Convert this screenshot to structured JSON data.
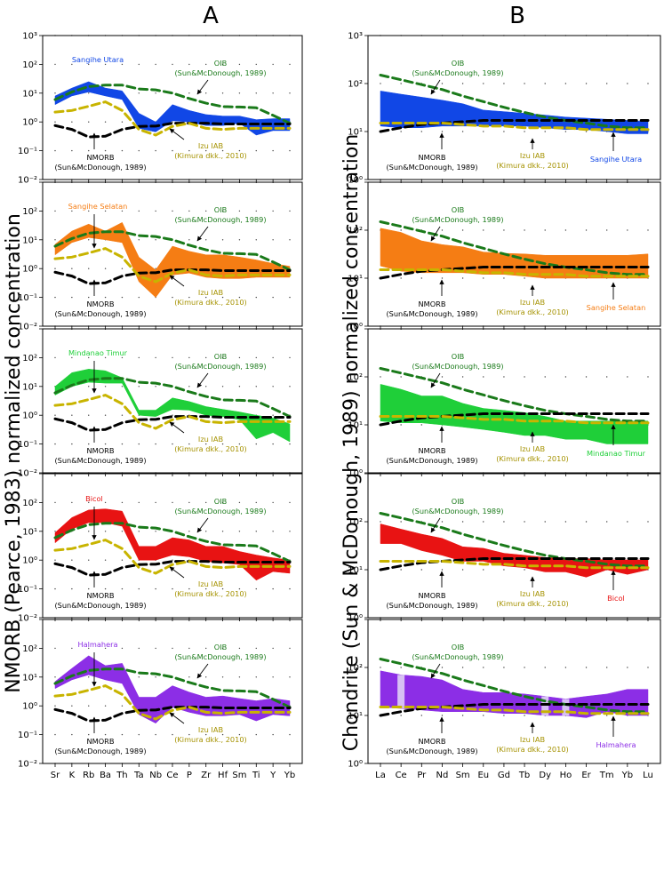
{
  "figure": {
    "panel_a_label": "A",
    "panel_b_label": "B",
    "ylabel_a": "NMORB (Pearce, 1983) normalized concentration",
    "ylabel_b": "Chondrite (Sun & McDonough, 1989) normalized concentration"
  },
  "chart_data": [
    {
      "type": "area",
      "panel": "A",
      "title": "",
      "xlabel": "",
      "ylabel": "NMORB (Pearce, 1983) normalized concentration",
      "y_scale": "log",
      "ylim": [
        0.01,
        1000
      ],
      "grid": "dotted",
      "categories": [
        "Sr",
        "K",
        "Rb",
        "Ba",
        "Th",
        "Ta",
        "Nb",
        "Ce",
        "P",
        "Zr",
        "Hf",
        "Sm",
        "Ti",
        "Y",
        "Yb"
      ],
      "reference_series": [
        {
          "name": "OIB",
          "label": "OIB\n(Sun&McDonough, 1989)",
          "color": "#1a7a1a",
          "style": "dashed",
          "values": [
            6,
            11,
            17,
            19,
            19,
            14,
            13,
            10,
            6.5,
            4.5,
            3.4,
            3.3,
            3.1,
            1.7,
            0.9
          ]
        },
        {
          "name": "NMORB",
          "label": "NMORB\n(Sun&McDonough, 1989)",
          "color": "#000000",
          "style": "dashed",
          "values": [
            0.75,
            0.55,
            0.3,
            0.32,
            0.55,
            0.7,
            0.72,
            0.9,
            0.9,
            0.9,
            0.85,
            0.85,
            0.85,
            0.85,
            0.85
          ]
        },
        {
          "name": "Izu IAB",
          "label": "Izu IAB\n(Kimura dkk., 2010)",
          "color": "#c8b400",
          "style": "dashed",
          "values": [
            2.2,
            2.5,
            3.5,
            5,
            2.5,
            0.55,
            0.35,
            0.7,
            0.9,
            0.6,
            0.55,
            0.6,
            0.6,
            0.6,
            0.6
          ]
        }
      ],
      "subplots": [
        {
          "name": "Sangihe Utara",
          "color": "#1147e6",
          "lower": [
            4,
            8,
            11,
            8,
            6,
            0.6,
            0.45,
            1.1,
            1.0,
            0.75,
            0.75,
            0.9,
            0.35,
            0.5,
            0.5
          ],
          "upper": [
            8,
            15,
            25,
            15,
            12,
            2,
            1,
            4,
            2.5,
            1.8,
            1.6,
            1.6,
            1.2,
            1.3,
            1.3
          ]
        },
        {
          "name": "Sangihe Selatan",
          "color": "#f57d14",
          "lower": [
            3,
            8,
            12,
            10,
            8,
            0.35,
            0.1,
            0.6,
            0.7,
            0.5,
            0.45,
            0.45,
            0.5,
            0.5,
            0.5
          ],
          "upper": [
            7,
            20,
            35,
            20,
            40,
            2.5,
            0.9,
            6,
            4,
            3,
            3,
            2.5,
            2,
            1.5,
            1.2
          ]
        },
        {
          "name": "Mindanao Timur",
          "color": "#1fcf39",
          "lower": [
            5,
            10,
            14,
            13,
            13,
            1,
            0.9,
            1.6,
            1.5,
            1,
            0.9,
            0.7,
            0.15,
            0.25,
            0.12
          ],
          "upper": [
            10,
            30,
            40,
            35,
            20,
            1.5,
            1.5,
            4,
            3,
            2,
            1.6,
            1.3,
            1,
            0.8,
            0.5
          ]
        },
        {
          "name": "Bicol",
          "color": "#e81313",
          "lower": [
            4,
            12,
            20,
            20,
            15,
            1,
            1,
            1.5,
            1.3,
            0.9,
            0.8,
            0.7,
            0.2,
            0.4,
            0.35
          ],
          "upper": [
            9,
            30,
            55,
            60,
            50,
            3,
            3,
            6,
            5,
            3,
            3,
            2,
            1.5,
            1.2,
            1
          ]
        },
        {
          "name": "Halmahera",
          "color": "#8c2ee6",
          "lower": [
            4,
            8,
            12,
            8,
            6,
            0.5,
            0.25,
            0.9,
            0.6,
            0.45,
            0.45,
            0.5,
            0.3,
            0.5,
            0.45
          ],
          "upper": [
            7,
            20,
            55,
            25,
            30,
            2,
            2,
            5,
            3,
            2,
            2.2,
            1.8,
            1.5,
            1.8,
            1.5
          ]
        }
      ]
    },
    {
      "type": "area",
      "panel": "B",
      "title": "",
      "xlabel": "",
      "ylabel": "Chondrite (Sun & McDonough, 1989) normalized concentration",
      "y_scale": "log",
      "ylim": [
        1,
        1000
      ],
      "grid": "dotted",
      "categories": [
        "La",
        "Ce",
        "Pr",
        "Nd",
        "Sm",
        "Eu",
        "Gd",
        "Tb",
        "Dy",
        "Ho",
        "Er",
        "Tm",
        "Yb",
        "Lu"
      ],
      "reference_series": [
        {
          "name": "OIB",
          "label": "OIB\n(Sun&McDonough, 1989)",
          "color": "#1a7a1a",
          "style": "dashed",
          "values": [
            150,
            120,
            95,
            75,
            55,
            42,
            32,
            25,
            20,
            17,
            15,
            13,
            12,
            12
          ]
        },
        {
          "name": "NMORB",
          "label": "NMORB\n(Sun&McDonough, 1989)",
          "color": "#000000",
          "style": "dashed",
          "values": [
            10,
            12,
            14,
            15,
            16,
            17,
            17,
            17,
            17,
            17,
            17,
            17,
            17,
            17
          ]
        },
        {
          "name": "Izu IAB",
          "label": "Izu IAB\n(Kimura dkk., 2010)",
          "color": "#c8b400",
          "style": "dashed",
          "values": [
            15,
            15,
            15,
            15,
            14,
            13,
            13,
            12,
            12,
            12,
            11,
            11,
            11,
            11
          ]
        }
      ],
      "subplots": [
        {
          "name": "Sangihe Utara",
          "color": "#1147e6",
          "lower": [
            13,
            12,
            12,
            13,
            13,
            13,
            13,
            13,
            12,
            11,
            11,
            10,
            9,
            9
          ],
          "upper": [
            70,
            60,
            52,
            45,
            38,
            28,
            26,
            24,
            22,
            20,
            19,
            18,
            17,
            16
          ]
        },
        {
          "name": "Sangihe Selatan",
          "color": "#f57d14",
          "lower": [
            18,
            14,
            13,
            13,
            13,
            12,
            12,
            11,
            10,
            10,
            10,
            10,
            10,
            10
          ],
          "upper": [
            110,
            90,
            60,
            50,
            45,
            35,
            33,
            32,
            30,
            30,
            30,
            30,
            30,
            32
          ]
        },
        {
          "name": "Mindanao Timur",
          "color": "#1fcf39",
          "lower": [
            12,
            11,
            11,
            10,
            9,
            8,
            7,
            6,
            6,
            5,
            5,
            4,
            4,
            4
          ],
          "upper": [
            70,
            55,
            40,
            40,
            28,
            22,
            20,
            18,
            15,
            12,
            12,
            12,
            12,
            12
          ]
        },
        {
          "name": "Bicol",
          "color": "#e81313",
          "lower": [
            35,
            35,
            25,
            20,
            15,
            15,
            12,
            11,
            9,
            9,
            7,
            10,
            8,
            10
          ],
          "upper": [
            90,
            70,
            55,
            45,
            30,
            28,
            22,
            20,
            18,
            17,
            17,
            16,
            16,
            16
          ]
        },
        {
          "name": "Halmahera",
          "color": "#8c2ee6",
          "lower": [
            15,
            14,
            13,
            12,
            12,
            12,
            11,
            11,
            10,
            10,
            9,
            12,
            10,
            10
          ],
          "upper": [
            85,
            70,
            65,
            55,
            35,
            30,
            30,
            28,
            25,
            22,
            25,
            28,
            35,
            35
          ],
          "light_bands": [
            "Ce",
            "Dy",
            "Ho"
          ]
        }
      ]
    }
  ]
}
